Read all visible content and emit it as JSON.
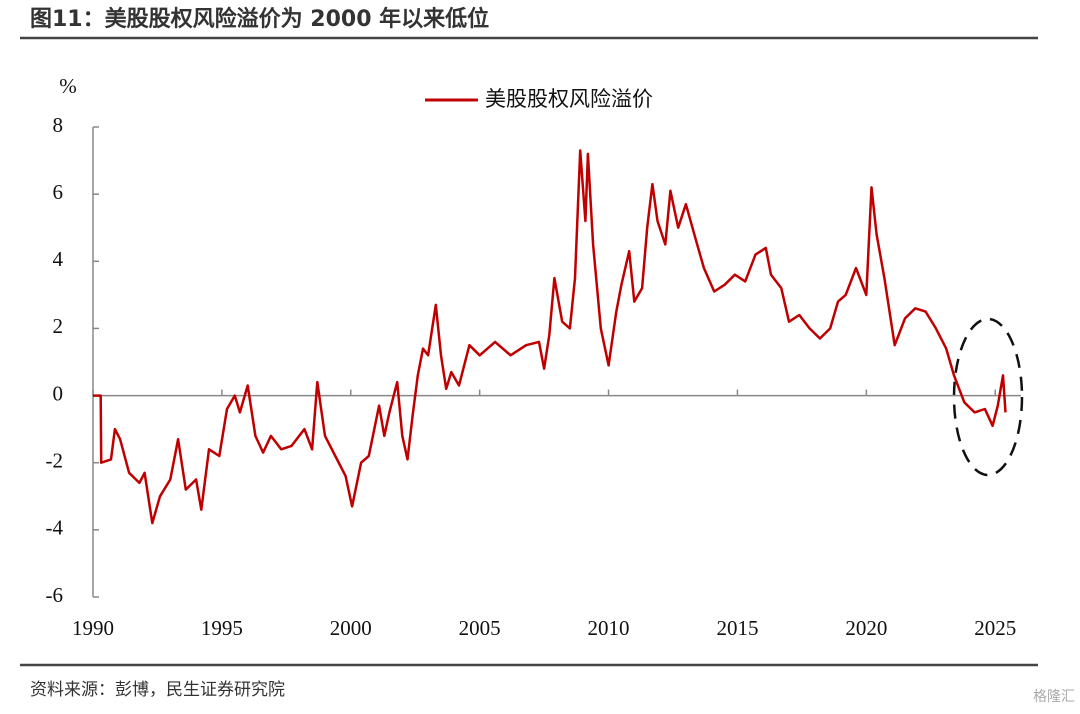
{
  "chart_data": {
    "type": "line",
    "title": "图11：美股股权风险溢价为 2000 年以来低位",
    "y_unit": "%",
    "source": "资料来源：彭博，民生证券研究院",
    "watermark": "格隆汇",
    "x": [
      1990.0,
      1990.3,
      1990.32,
      1990.7,
      1990.85,
      1991.05,
      1991.4,
      1991.8,
      1992.0,
      1992.3,
      1992.6,
      1993.0,
      1993.3,
      1993.6,
      1994.0,
      1994.2,
      1994.5,
      1994.9,
      1995.2,
      1995.5,
      1995.7,
      1996.0,
      1996.3,
      1996.6,
      1996.9,
      1997.3,
      1997.7,
      1998.2,
      1998.5,
      1998.7,
      1999.0,
      1999.4,
      1999.8,
      2000.05,
      2000.4,
      2000.7,
      2001.1,
      2001.3,
      2001.5,
      2001.8,
      2002.0,
      2002.2,
      2002.4,
      2002.6,
      2002.8,
      2003.0,
      2003.3,
      2003.5,
      2003.7,
      2003.9,
      2004.2,
      2004.6,
      2005.0,
      2005.6,
      2006.2,
      2006.8,
      2007.3,
      2007.5,
      2007.7,
      2007.9,
      2008.2,
      2008.5,
      2008.7,
      2008.9,
      2009.1,
      2009.2,
      2009.4,
      2009.7,
      2010.0,
      2010.3,
      2010.5,
      2010.8,
      2011.0,
      2011.3,
      2011.5,
      2011.7,
      2011.9,
      2012.2,
      2012.4,
      2012.7,
      2013.0,
      2013.4,
      2013.7,
      2014.1,
      2014.5,
      2014.9,
      2015.3,
      2015.7,
      2016.1,
      2016.3,
      2016.7,
      2017.0,
      2017.4,
      2017.8,
      2018.2,
      2018.6,
      2018.9,
      2019.2,
      2019.6,
      2020.0,
      2020.2,
      2020.4,
      2020.7,
      2021.1,
      2021.5,
      2021.9,
      2022.3,
      2022.7,
      2023.1,
      2023.4,
      2023.8,
      2024.2,
      2024.6,
      2024.9,
      2025.1,
      2025.3,
      2025.4
    ],
    "series": [
      {
        "name": "美股股权风险溢价",
        "color": "#c00000",
        "values": [
          0,
          0,
          -2.0,
          -1.9,
          -1.0,
          -1.3,
          -2.3,
          -2.6,
          -2.3,
          -3.8,
          -3.0,
          -2.5,
          -1.3,
          -2.8,
          -2.5,
          -3.4,
          -1.6,
          -1.8,
          -0.4,
          0.0,
          -0.5,
          0.3,
          -1.2,
          -1.7,
          -1.2,
          -1.6,
          -1.5,
          -1.0,
          -1.6,
          0.4,
          -1.2,
          -1.8,
          -2.4,
          -3.3,
          -2.0,
          -1.8,
          -0.3,
          -1.2,
          -0.5,
          0.4,
          -1.2,
          -1.9,
          -0.6,
          0.6,
          1.4,
          1.2,
          2.7,
          1.2,
          0.2,
          0.7,
          0.3,
          1.5,
          1.2,
          1.6,
          1.2,
          1.5,
          1.6,
          0.8,
          1.8,
          3.5,
          2.2,
          2.0,
          3.5,
          7.3,
          5.2,
          7.2,
          4.5,
          2.0,
          0.9,
          2.5,
          3.3,
          4.3,
          2.8,
          3.2,
          5.0,
          6.3,
          5.2,
          4.5,
          6.1,
          5.0,
          5.7,
          4.6,
          3.8,
          3.1,
          3.3,
          3.6,
          3.4,
          4.2,
          4.4,
          3.6,
          3.2,
          2.2,
          2.4,
          2.0,
          1.7,
          2.0,
          2.8,
          3.0,
          3.8,
          3.0,
          6.2,
          4.8,
          3.5,
          1.5,
          2.3,
          2.6,
          2.5,
          2.0,
          1.4,
          0.6,
          -0.2,
          -0.5,
          -0.4,
          -0.9,
          -0.3,
          0.6,
          -0.5
        ]
      }
    ],
    "xlim": [
      1990,
      2026
    ],
    "xticks": [
      1990,
      1995,
      2000,
      2005,
      2010,
      2015,
      2020,
      2025
    ],
    "ylim": [
      -6,
      8
    ],
    "yticks": [
      -6,
      -4,
      -2,
      0,
      2,
      4,
      6,
      8
    ]
  }
}
